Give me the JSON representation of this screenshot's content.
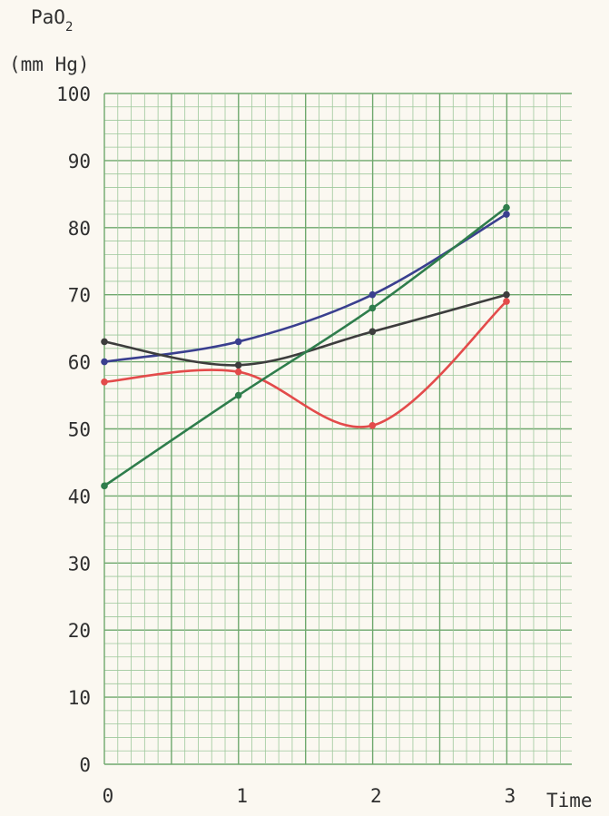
{
  "chart_data": {
    "type": "line",
    "ylabel": {
      "main": "PaO",
      "subscript": "2",
      "units": "(mm Hg)"
    },
    "xlabel": "Time",
    "xlim": [
      0,
      3
    ],
    "ylim": [
      0,
      100
    ],
    "x_ticks": [
      "0",
      "1",
      "2",
      "3"
    ],
    "y_ticks": [
      "0",
      "10",
      "20",
      "30",
      "40",
      "50",
      "60",
      "70",
      "80",
      "90",
      "100"
    ],
    "x": [
      0,
      1,
      2,
      3
    ],
    "grid": true,
    "series": [
      {
        "color": "#3a3f8f",
        "values": [
          60,
          63,
          70,
          82
        ]
      },
      {
        "color": "#3d3d3d",
        "values": [
          63,
          59.5,
          64.5,
          70
        ]
      },
      {
        "color": "#e34b4b",
        "values": [
          57,
          58.5,
          50.5,
          69
        ]
      },
      {
        "color": "#2f7d4c",
        "values": [
          41.5,
          55,
          68,
          83
        ]
      }
    ],
    "colors": {
      "grid_minor": "#9ec89c",
      "grid_major": "#6fa86d",
      "paper": "#fbf8f1"
    }
  }
}
